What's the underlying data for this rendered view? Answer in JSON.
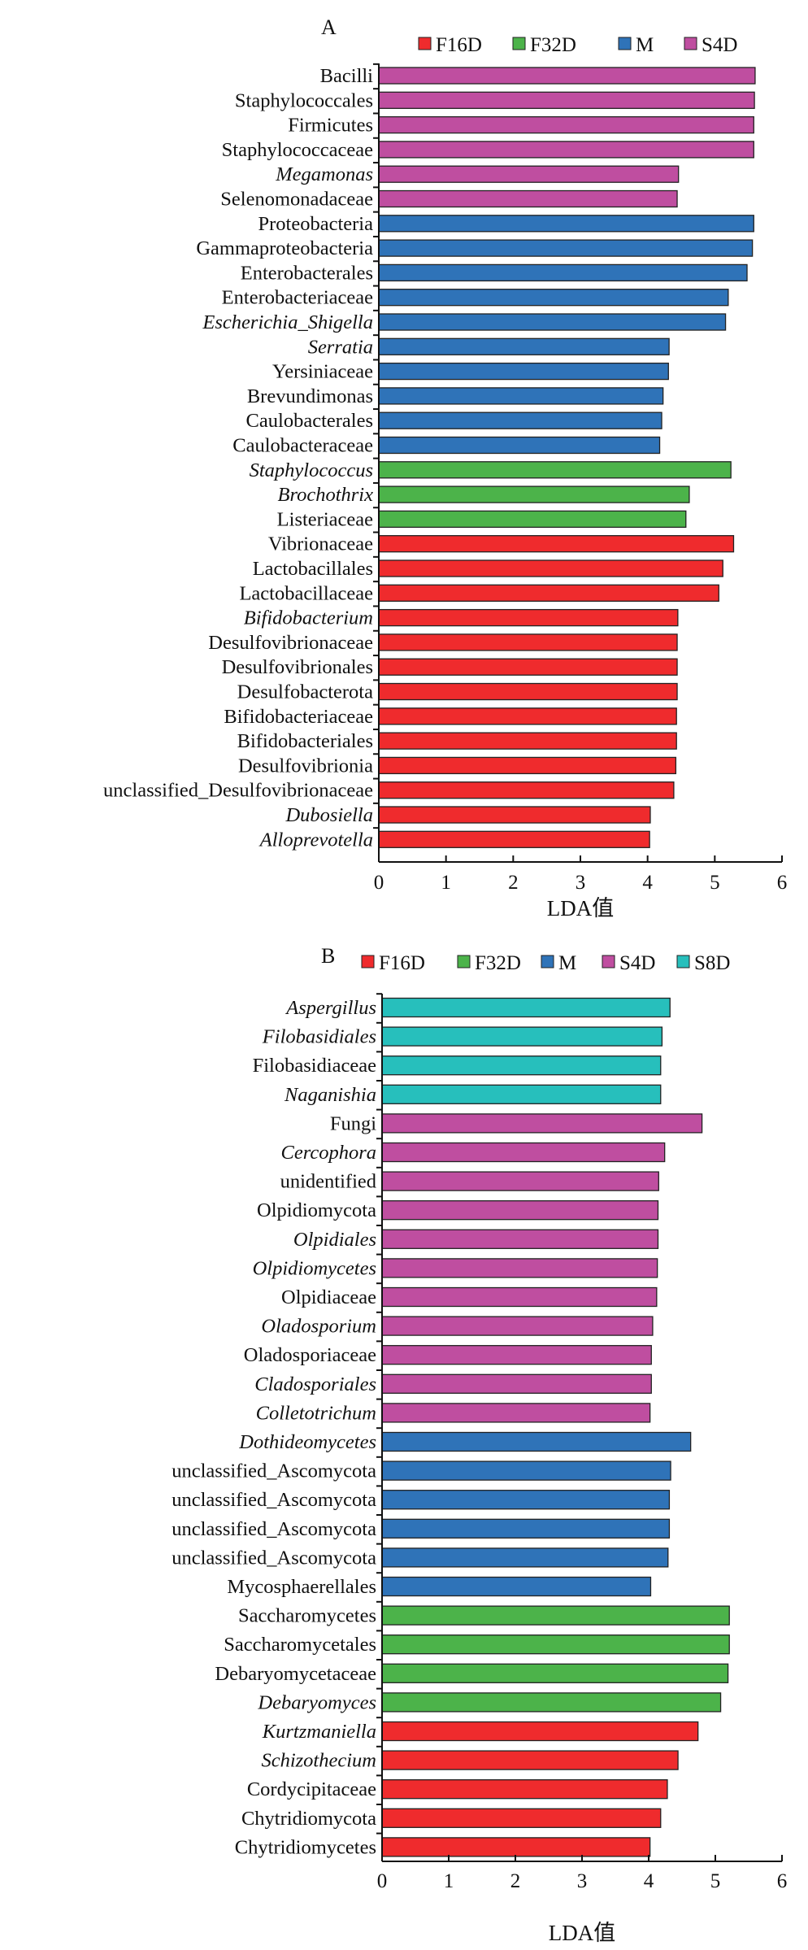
{
  "colors": {
    "F16D": "#ef2b2d",
    "F32D": "#4cb34a",
    "M": "#2f73b8",
    "S4D": "#bf4ea0",
    "S8D": "#27bfbc"
  },
  "chart_data": [
    {
      "type": "bar",
      "orientation": "horizontal",
      "panel_label": "A",
      "xlabel": "LDA值",
      "xlim": [
        0,
        6
      ],
      "xticks": [
        0,
        1,
        2,
        3,
        4,
        5,
        6
      ],
      "legend": [
        "F16D",
        "F32D",
        "M",
        "S4D"
      ],
      "legend_position": "top",
      "categories": [
        {
          "label": "Bacilli",
          "italic": false,
          "group": "S4D",
          "value": 5.6
        },
        {
          "label": "Staphylococcales",
          "italic": false,
          "group": "S4D",
          "value": 5.59
        },
        {
          "label": "Firmicutes",
          "italic": false,
          "group": "S4D",
          "value": 5.58
        },
        {
          "label": "Staphylococcaceae",
          "italic": false,
          "group": "S4D",
          "value": 5.58
        },
        {
          "label": "Megamonas",
          "italic": true,
          "group": "S4D",
          "value": 4.46
        },
        {
          "label": "Selenomonadaceae",
          "italic": false,
          "group": "S4D",
          "value": 4.44
        },
        {
          "label": "Proteobacteria",
          "italic": false,
          "group": "M",
          "value": 5.58
        },
        {
          "label": "Gammaproteobacteria",
          "italic": false,
          "group": "M",
          "value": 5.56
        },
        {
          "label": "Enterobacterales",
          "italic": false,
          "group": "M",
          "value": 5.48
        },
        {
          "label": "Enterobacteriaceae",
          "italic": false,
          "group": "M",
          "value": 5.2
        },
        {
          "label": "Escherichia_Shigella",
          "italic": true,
          "group": "M",
          "value": 5.16
        },
        {
          "label": "Serratia",
          "italic": true,
          "group": "M",
          "value": 4.32
        },
        {
          "label": "Yersiniaceae",
          "italic": false,
          "group": "M",
          "value": 4.31
        },
        {
          "label": "Brevundimonas",
          "italic": false,
          "group": "M",
          "value": 4.23
        },
        {
          "label": "Caulobacterales",
          "italic": false,
          "group": "M",
          "value": 4.21
        },
        {
          "label": "Caulobacteraceae",
          "italic": false,
          "group": "M",
          "value": 4.18
        },
        {
          "label": "Staphylococcus",
          "italic": true,
          "group": "F32D",
          "value": 5.24
        },
        {
          "label": "Brochothrix",
          "italic": true,
          "group": "F32D",
          "value": 4.62
        },
        {
          "label": "Listeriaceae",
          "italic": false,
          "group": "F32D",
          "value": 4.57
        },
        {
          "label": "Vibrionaceae",
          "italic": false,
          "group": "F16D",
          "value": 5.28
        },
        {
          "label": "Lactobacillales",
          "italic": false,
          "group": "F16D",
          "value": 5.12
        },
        {
          "label": "Lactobacillaceae",
          "italic": false,
          "group": "F16D",
          "value": 5.06
        },
        {
          "label": "Bifidobacterium",
          "italic": true,
          "group": "F16D",
          "value": 4.45
        },
        {
          "label": "Desulfovibrionaceae",
          "italic": false,
          "group": "F16D",
          "value": 4.44
        },
        {
          "label": "Desulfovibrionales",
          "italic": false,
          "group": "F16D",
          "value": 4.44
        },
        {
          "label": "Desulfobacterota",
          "italic": false,
          "group": "F16D",
          "value": 4.44
        },
        {
          "label": "Bifidobacteriaceae",
          "italic": false,
          "group": "F16D",
          "value": 4.43
        },
        {
          "label": "Bifidobacteriales",
          "italic": false,
          "group": "F16D",
          "value": 4.43
        },
        {
          "label": "Desulfovibrionia",
          "italic": false,
          "group": "F16D",
          "value": 4.42
        },
        {
          "label": "unclassified_Desulfovibrionaceae",
          "italic": false,
          "group": "F16D",
          "value": 4.39
        },
        {
          "label": "Dubosiella",
          "italic": true,
          "group": "F16D",
          "value": 4.04
        },
        {
          "label": "Alloprevotella",
          "italic": true,
          "group": "F16D",
          "value": 4.03
        }
      ]
    },
    {
      "type": "bar",
      "orientation": "horizontal",
      "panel_label": "B",
      "xlabel": "LDA值",
      "xlim": [
        0,
        6
      ],
      "xticks": [
        0,
        1,
        2,
        3,
        4,
        5,
        6
      ],
      "legend": [
        "F16D",
        "F32D",
        "M",
        "S4D",
        "S8D"
      ],
      "legend_position": "top",
      "categories": [
        {
          "label": "Aspergillus",
          "italic": true,
          "group": "S8D",
          "value": 4.32
        },
        {
          "label": "Filobasidiales",
          "italic": true,
          "group": "S8D",
          "value": 4.2
        },
        {
          "label": "Filobasidiaceae",
          "italic": false,
          "group": "S8D",
          "value": 4.18
        },
        {
          "label": "Naganishia",
          "italic": true,
          "group": "S8D",
          "value": 4.18
        },
        {
          "label": "Fungi",
          "italic": false,
          "group": "S4D",
          "value": 4.8
        },
        {
          "label": "Cercophora",
          "italic": true,
          "group": "S4D",
          "value": 4.24
        },
        {
          "label": "unidentified",
          "italic": false,
          "group": "S4D",
          "value": 4.15
        },
        {
          "label": "Olpidiomycota",
          "italic": false,
          "group": "S4D",
          "value": 4.14
        },
        {
          "label": "Olpidiales",
          "italic": true,
          "group": "S4D",
          "value": 4.14
        },
        {
          "label": "Olpidiomycetes",
          "italic": true,
          "group": "S4D",
          "value": 4.13
        },
        {
          "label": "Olpidiaceae",
          "italic": false,
          "group": "S4D",
          "value": 4.12
        },
        {
          "label": "Oladosporium",
          "italic": true,
          "group": "S4D",
          "value": 4.06
        },
        {
          "label": "Oladosporiaceae",
          "italic": false,
          "group": "S4D",
          "value": 4.04
        },
        {
          "label": "Cladosporiales",
          "italic": true,
          "group": "S4D",
          "value": 4.04
        },
        {
          "label": "Colletotrichum",
          "italic": true,
          "group": "S4D",
          "value": 4.02
        },
        {
          "label": "Dothideomycetes",
          "italic": true,
          "group": "M",
          "value": 4.63
        },
        {
          "label": "unclassified_Ascomycota",
          "italic": false,
          "group": "M",
          "value": 4.33
        },
        {
          "label": "unclassified_Ascomycota",
          "italic": false,
          "group": "M",
          "value": 4.31
        },
        {
          "label": "unclassified_Ascomycota",
          "italic": false,
          "group": "M",
          "value": 4.31
        },
        {
          "label": "unclassified_Ascomycota",
          "italic": false,
          "group": "M",
          "value": 4.29
        },
        {
          "label": "Mycosphaerellales",
          "italic": false,
          "group": "M",
          "value": 4.03
        },
        {
          "label": "Saccharomycetes",
          "italic": false,
          "group": "F32D",
          "value": 5.21
        },
        {
          "label": "Saccharomycetales",
          "italic": false,
          "group": "F32D",
          "value": 5.21
        },
        {
          "label": "Debaryomycetaceae",
          "italic": false,
          "group": "F32D",
          "value": 5.19
        },
        {
          "label": "Debaryomyces",
          "italic": true,
          "group": "F32D",
          "value": 5.08
        },
        {
          "label": "Kurtzmaniella",
          "italic": true,
          "group": "F16D",
          "value": 4.74
        },
        {
          "label": "Schizothecium",
          "italic": true,
          "group": "F16D",
          "value": 4.44
        },
        {
          "label": "Cordycipitaceae",
          "italic": false,
          "group": "F16D",
          "value": 4.28
        },
        {
          "label": "Chytridiomycota",
          "italic": false,
          "group": "F16D",
          "value": 4.18
        },
        {
          "label": "Chytridiomycetes",
          "italic": false,
          "group": "F16D",
          "value": 4.02
        }
      ]
    }
  ]
}
